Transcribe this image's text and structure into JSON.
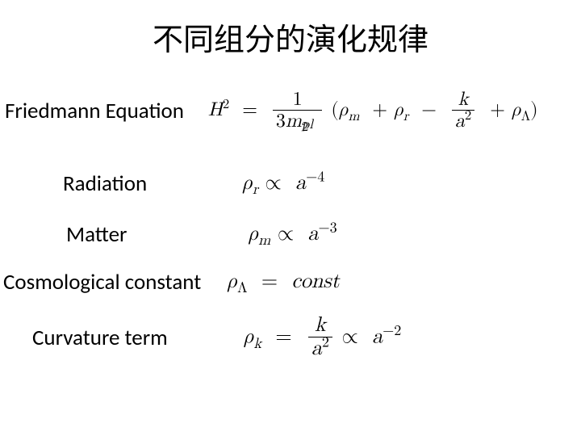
{
  "title": "不同组分的演化规律",
  "rows": {
    "friedmann": {
      "label": "Friedmann Equation"
    },
    "radiation": {
      "label": "Radiation"
    },
    "matter": {
      "label": "Matter"
    },
    "cosmo": {
      "label": "Cosmological constant"
    },
    "curvature": {
      "label": "Curvature term"
    }
  },
  "equations": {
    "friedmann": {
      "lhs_base": "H",
      "lhs_exp": "2",
      "coef_num": "1",
      "coef_den_a": "3",
      "coef_den_b_base": "m",
      "coef_den_b_sub": "pl",
      "coef_den_b_sup": "2",
      "rho": "ρ",
      "sub_m": "m",
      "sub_r": "r",
      "sub_L": "Λ",
      "k": "k",
      "a": "a",
      "a_exp": "2"
    },
    "radiation": {
      "rho": "ρ",
      "sub": "r",
      "prop": "∝",
      "a": "a",
      "exp": "−4"
    },
    "matter": {
      "rho": "ρ",
      "sub": "m",
      "prop": "∝",
      "a": "a",
      "exp": "−3"
    },
    "cosmo": {
      "rho": "ρ",
      "sub": "Λ",
      "eq": "=",
      "rhs": "const"
    },
    "curvature": {
      "rho": "ρ",
      "sub": "k",
      "eq": "=",
      "k": "k",
      "a": "a",
      "a_exp": "2",
      "prop": "∝",
      "exp": "−2"
    }
  },
  "style": {
    "background": "#ffffff",
    "text_color": "#000000",
    "title_fontsize_pt": 28,
    "label_fontsize_pt": 20,
    "eq_fontsize_pt": 20,
    "title_font": "SimSun serif",
    "label_font": "Calibri sans-serif",
    "eq_font": "Latin Modern Math / Times serif"
  }
}
